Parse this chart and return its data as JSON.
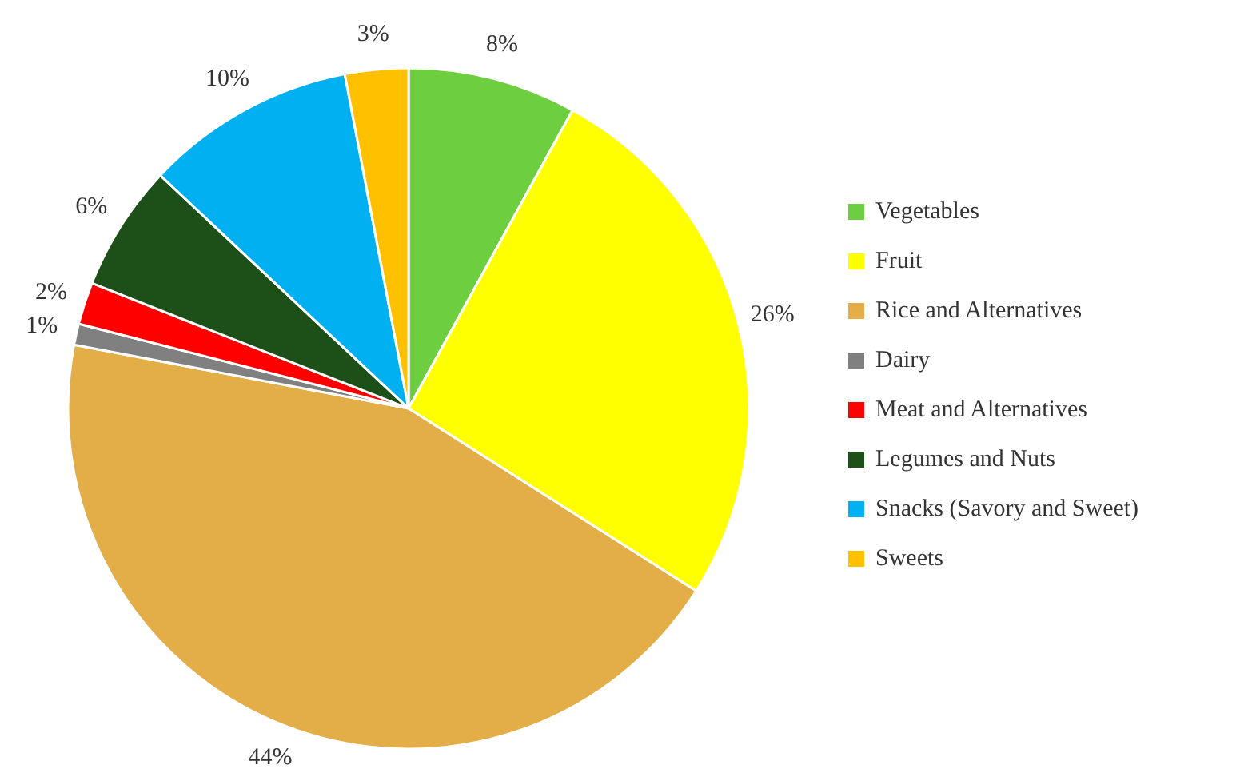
{
  "chart_data": {
    "type": "pie",
    "categories": [
      "Vegetables",
      "Fruit",
      "Rice and Alternatives",
      "Dairy",
      "Meat and Alternatives",
      "Legumes and Nuts",
      "Snacks (Savory and Sweet)",
      "Sweets"
    ],
    "values": [
      8,
      26,
      44,
      1,
      2,
      6,
      10,
      3
    ],
    "value_labels": [
      "8%",
      "26%",
      "44%",
      "1%",
      "2%",
      "6%",
      "10%",
      "3%"
    ],
    "colors": [
      "#6dcf3f",
      "#ffff00",
      "#e3ad48",
      "#808080",
      "#ff0000",
      "#1d5018",
      "#00b0f0",
      "#ffc000"
    ],
    "legend": "right"
  }
}
